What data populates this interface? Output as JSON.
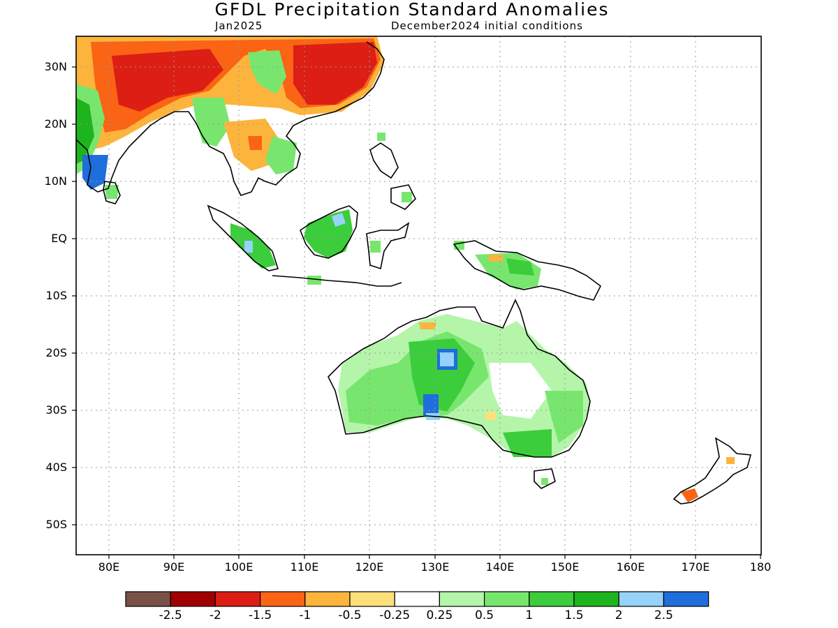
{
  "title": "GFDL Precipitation Standard Anomalies",
  "subtitle_left": "Jan2025",
  "subtitle_right": "December2024 initial conditions",
  "lat_labels": [
    "30N",
    "20N",
    "10N",
    "EQ",
    "10S",
    "20S",
    "30S",
    "40S",
    "50S"
  ],
  "lon_labels": [
    "80E",
    "90E",
    "100E",
    "110E",
    "120E",
    "130E",
    "140E",
    "150E",
    "160E",
    "170E",
    "180"
  ],
  "colorbar": {
    "colors": [
      "#7a5147",
      "#a00000",
      "#dc1e14",
      "#fa6414",
      "#fdb43c",
      "#fee07b",
      "#ffffff",
      "#b4f5aa",
      "#78e66e",
      "#3ccd3c",
      "#1eb41e",
      "#96d2fa",
      "#1e6edc"
    ],
    "labels": [
      "-2.5",
      "-2",
      "-1.5",
      "-1",
      "-0.5",
      "-0.25",
      "0.25",
      "0.5",
      "1",
      "1.5",
      "2",
      "2.5"
    ]
  }
}
